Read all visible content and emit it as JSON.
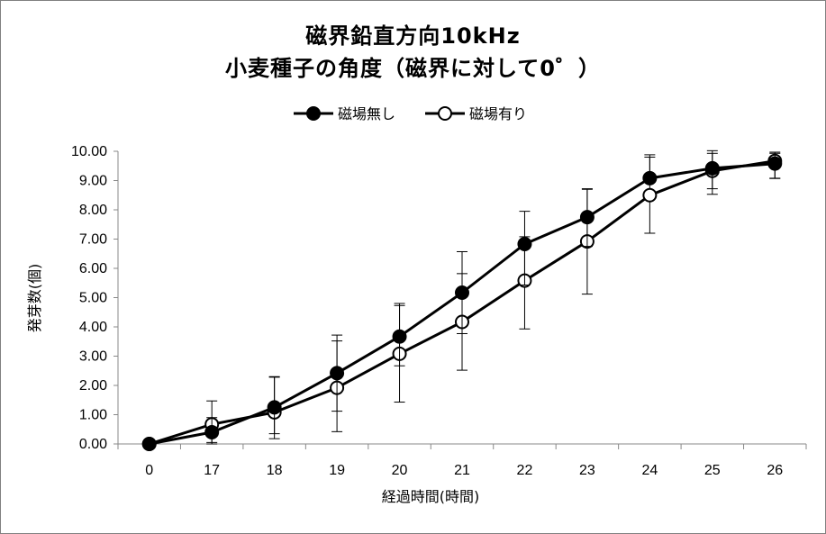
{
  "chart_data": {
    "type": "line",
    "title": "磁界鉛直方向10kHz",
    "subtitle": "小麦種子の角度（磁界に対して0゜）",
    "xlabel": "経過時間(時間)",
    "ylabel": "発芽数(個)",
    "categories": [
      "0",
      "17",
      "18",
      "19",
      "20",
      "21",
      "22",
      "23",
      "24",
      "25",
      "26"
    ],
    "ylim": [
      0,
      10
    ],
    "yticks": [
      "0.00",
      "1.00",
      "2.00",
      "3.00",
      "4.00",
      "5.00",
      "6.00",
      "7.00",
      "8.00",
      "9.00",
      "10.00"
    ],
    "legend_position": "top",
    "grid": false,
    "series": [
      {
        "name": "磁場無し",
        "marker": "filled-circle",
        "color": "#000000",
        "values": [
          0,
          0.4,
          1.25,
          2.42,
          3.67,
          5.17,
          6.83,
          7.75,
          9.08,
          9.42,
          9.58
        ],
        "err_low": [
          0,
          0.35,
          0.9,
          1.3,
          1.0,
          1.4,
          1.4,
          1.0,
          0.0,
          0.7,
          0.5
        ],
        "err_high": [
          0,
          0.5,
          1.05,
          1.3,
          1.13,
          1.4,
          1.12,
          0.95,
          0.8,
          0.6,
          0.35
        ]
      },
      {
        "name": "磁場有り",
        "marker": "open-circle",
        "color": "#000000",
        "values": [
          0,
          0.67,
          1.08,
          1.92,
          3.08,
          4.17,
          5.58,
          6.92,
          8.5,
          9.33,
          9.67
        ],
        "err_low": [
          0,
          0.67,
          0.9,
          1.5,
          1.65,
          1.65,
          1.65,
          1.8,
          1.3,
          0.8,
          0.6
        ],
        "err_high": [
          0,
          0.8,
          1.2,
          1.6,
          1.65,
          1.65,
          1.5,
          1.8,
          1.3,
          0.6,
          0.3
        ]
      }
    ]
  }
}
